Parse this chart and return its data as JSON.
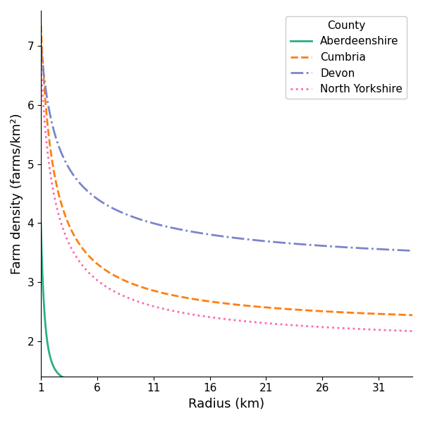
{
  "title": "",
  "xlabel": "Radius (km)",
  "ylabel": "Farm density (farms/km²)",
  "legend_title": "County",
  "xlim": [
    1,
    34
  ],
  "ylim": [
    1.4,
    7.6
  ],
  "xticks": [
    1,
    6,
    11,
    16,
    21,
    26,
    31
  ],
  "yticks": [
    2,
    3,
    4,
    5,
    6,
    7
  ],
  "series_params": [
    {
      "name": "Aberdeenshire",
      "color": "#2ab07f",
      "linestyle": "solid",
      "a": 1.28,
      "b": 2.72,
      "c": 3.0
    },
    {
      "name": "Cumbria",
      "color": "#ff7f0e",
      "linestyle": "dashed",
      "a": 2.18,
      "b": 5.17,
      "c": 0.85
    },
    {
      "name": "Devon",
      "color": "#7b85c9",
      "linestyle": "dashdot",
      "a": 3.05,
      "b": 3.98,
      "c": 0.6
    },
    {
      "name": "North Yorkshire",
      "color": "#ff69b4",
      "linestyle": "dotted",
      "a": 1.88,
      "b": 4.82,
      "c": 0.8
    }
  ],
  "background_color": "#ffffff",
  "figsize": [
    6.0,
    5.97
  ],
  "dpi": 100
}
